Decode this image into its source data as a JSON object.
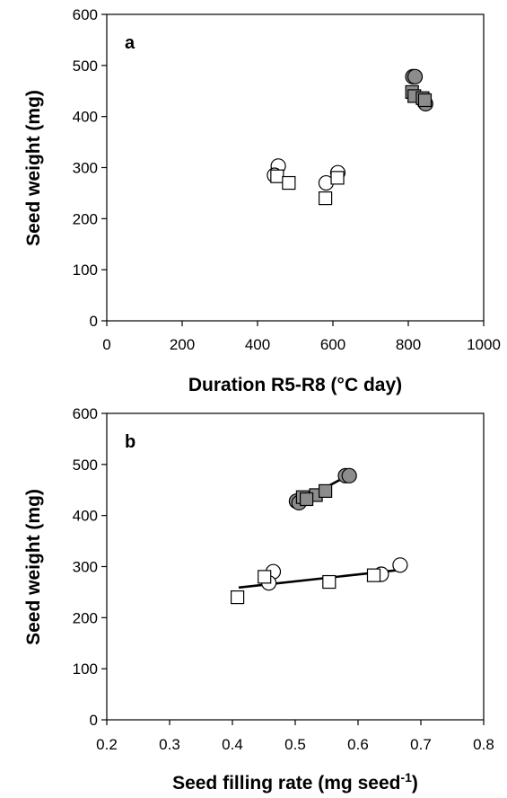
{
  "chart_data": [
    {
      "type": "scatter",
      "panel_label": "a",
      "xlabel": "Duration R5-R8 (°C day)",
      "ylabel": "Seed weight (mg)",
      "xlim": [
        0,
        1000
      ],
      "ylim": [
        0,
        600
      ],
      "xticks": [
        0,
        200,
        400,
        600,
        800,
        1000
      ],
      "yticks": [
        0,
        100,
        200,
        300,
        400,
        500,
        600
      ],
      "xtick_labels": [
        "0",
        "200",
        "400",
        "600",
        "800",
        "1000"
      ],
      "ytick_labels": [
        "0",
        "100",
        "200",
        "300",
        "400",
        "500",
        "600"
      ],
      "grid": false,
      "series": [
        {
          "marker": "circle",
          "fill": "open",
          "points": [
            [
              455,
              303
            ],
            [
              445,
              285
            ],
            [
              582,
              270
            ],
            [
              613,
              290
            ]
          ]
        },
        {
          "marker": "square",
          "fill": "open",
          "points": [
            [
              452,
              283
            ],
            [
              483,
              270
            ],
            [
              580,
              240
            ],
            [
              612,
              280
            ]
          ]
        },
        {
          "marker": "circle",
          "fill": "gray",
          "points": [
            [
              812,
              478
            ],
            [
              818,
              478
            ],
            [
              843,
              428
            ],
            [
              846,
              425
            ]
          ]
        },
        {
          "marker": "square",
          "fill": "gray",
          "points": [
            [
              810,
              448
            ],
            [
              816,
              440
            ],
            [
              838,
              436
            ],
            [
              844,
              432
            ]
          ]
        }
      ],
      "colors": {
        "gray_fill": "#8c8c8c",
        "open_fill": "#ffffff",
        "stroke": "#000000"
      }
    },
    {
      "type": "scatter",
      "panel_label": "b",
      "xlabel": "Seed filling rate (mg seed",
      "xlabel_superscript": "-1",
      "xlabel_suffix": ")",
      "ylabel": "Seed weight (mg)",
      "xlim": [
        0.2,
        0.8
      ],
      "ylim": [
        0,
        600
      ],
      "xticks": [
        0.2,
        0.3,
        0.4,
        0.5,
        0.6,
        0.7,
        0.8
      ],
      "yticks": [
        0,
        100,
        200,
        300,
        400,
        500,
        600
      ],
      "xtick_labels": [
        "0.2",
        "0.3",
        "0.4",
        "0.5",
        "0.6",
        "0.7",
        "0.8"
      ],
      "ytick_labels": [
        "0",
        "100",
        "200",
        "300",
        "400",
        "500",
        "600"
      ],
      "grid": false,
      "series": [
        {
          "marker": "circle",
          "fill": "open",
          "points": [
            [
              0.465,
              290
            ],
            [
              0.458,
              268
            ],
            [
              0.637,
              285
            ],
            [
              0.667,
              303
            ]
          ]
        },
        {
          "marker": "square",
          "fill": "open",
          "points": [
            [
              0.408,
              240
            ],
            [
              0.451,
              280
            ],
            [
              0.554,
              270
            ],
            [
              0.625,
              283
            ]
          ]
        },
        {
          "marker": "circle",
          "fill": "gray",
          "points": [
            [
              0.502,
              428
            ],
            [
              0.506,
              425
            ],
            [
              0.58,
              478
            ],
            [
              0.586,
              478
            ]
          ]
        },
        {
          "marker": "square",
          "fill": "gray",
          "points": [
            [
              0.512,
              436
            ],
            [
              0.533,
              440
            ],
            [
              0.548,
              448
            ],
            [
              0.518,
              432
            ]
          ]
        }
      ],
      "trendlines": [
        {
          "from": [
            0.41,
            259
          ],
          "to": [
            0.67,
            294
          ]
        },
        {
          "from": [
            0.5,
            423
          ],
          "to": [
            0.585,
            479
          ]
        }
      ],
      "colors": {
        "gray_fill": "#8c8c8c",
        "open_fill": "#ffffff",
        "stroke": "#000000"
      }
    }
  ]
}
